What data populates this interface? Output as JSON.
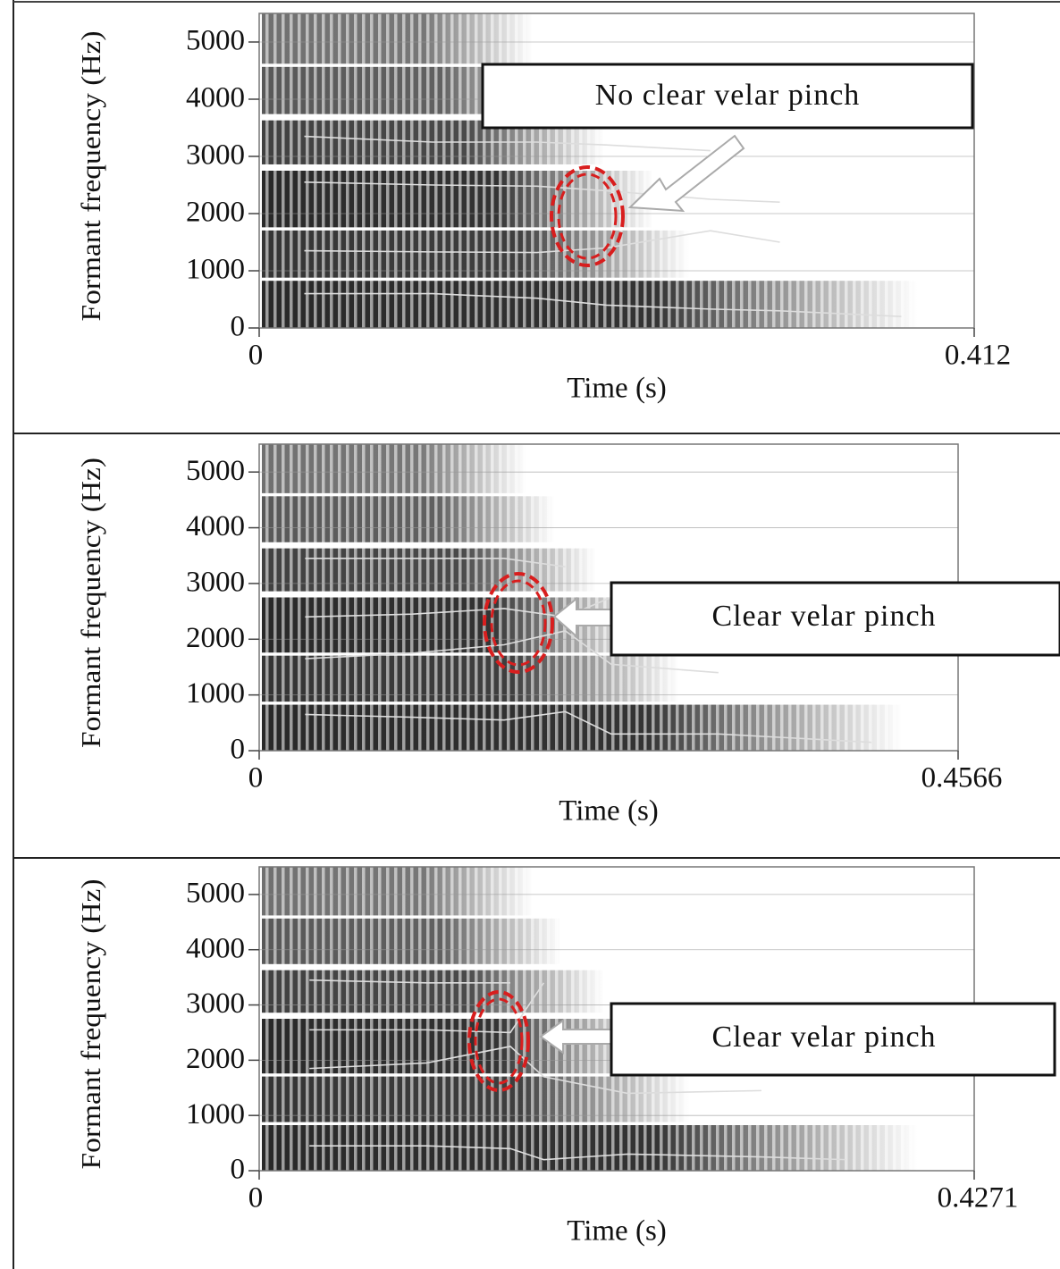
{
  "chart_data": [
    {
      "type": "line",
      "ylabel": "Formant frequency (Hz)",
      "xlabel": "Time (s)",
      "annotation": "No clear velar pinch",
      "xlim": [
        0,
        0.412
      ],
      "xticks": [
        0,
        0.412
      ],
      "ylim": [
        0,
        5500
      ],
      "yticks": [
        0,
        1000,
        2000,
        3000,
        4000,
        5000
      ],
      "grid": true,
      "x": [
        0.026,
        0.1,
        0.16,
        0.2,
        0.26,
        0.3,
        0.37
      ],
      "series": [
        {
          "color": "#dddddd",
          "values": [
            600,
            600,
            520,
            400,
            330,
            300,
            200
          ]
        },
        {
          "color": "#dddddd",
          "values": [
            1350,
            1330,
            1320,
            1400,
            1700,
            1500,
            null
          ]
        },
        {
          "color": "#dddddd",
          "values": [
            2550,
            2500,
            2480,
            2400,
            2250,
            2200,
            null
          ]
        },
        {
          "color": "#dddddd",
          "values": [
            3350,
            3250,
            3250,
            3200,
            3100,
            null,
            null
          ]
        }
      ]
    },
    {
      "type": "line",
      "ylabel": "Formant frequency (Hz)",
      "xlabel": "Time (s)",
      "annotation": "Clear velar pinch",
      "xlim": [
        0,
        0.4566
      ],
      "xticks": [
        0,
        0.4566
      ],
      "ylim": [
        0,
        5500
      ],
      "yticks": [
        0,
        1000,
        2000,
        3000,
        4000,
        5000
      ],
      "grid": true,
      "x": [
        0.03,
        0.1,
        0.16,
        0.2,
        0.23,
        0.3,
        0.4
      ],
      "series": [
        {
          "color": "#dddddd",
          "values": [
            650,
            600,
            550,
            700,
            300,
            300,
            150
          ]
        },
        {
          "color": "#dddddd",
          "values": [
            1650,
            1750,
            1900,
            2150,
            1550,
            1400,
            null
          ]
        },
        {
          "color": "#dddddd",
          "values": [
            2400,
            2450,
            2550,
            2400,
            2750,
            null,
            null
          ]
        },
        {
          "color": "#dddddd",
          "values": [
            3450,
            3450,
            3450,
            3300,
            null,
            null,
            null
          ]
        }
      ]
    },
    {
      "type": "line",
      "ylabel": "Formant frequency (Hz)",
      "xlabel": "Time (s)",
      "annotation": "Clear velar pinch",
      "xlim": [
        0,
        0.4271
      ],
      "xticks": [
        0,
        0.4271
      ],
      "ylim": [
        0,
        5500
      ],
      "yticks": [
        0,
        1000,
        2000,
        3000,
        4000,
        5000
      ],
      "grid": true,
      "x": [
        0.03,
        0.1,
        0.15,
        0.17,
        0.22,
        0.3,
        0.35
      ],
      "series": [
        {
          "color": "#dddddd",
          "values": [
            450,
            450,
            400,
            200,
            300,
            250,
            200
          ]
        },
        {
          "color": "#dddddd",
          "values": [
            1850,
            1950,
            2250,
            1700,
            1400,
            1450,
            null
          ]
        },
        {
          "color": "#dddddd",
          "values": [
            2550,
            2550,
            2500,
            3400,
            null,
            null,
            null
          ]
        },
        {
          "color": "#dddddd",
          "values": [
            3450,
            3400,
            3400,
            null,
            null,
            null,
            null
          ]
        }
      ]
    }
  ]
}
